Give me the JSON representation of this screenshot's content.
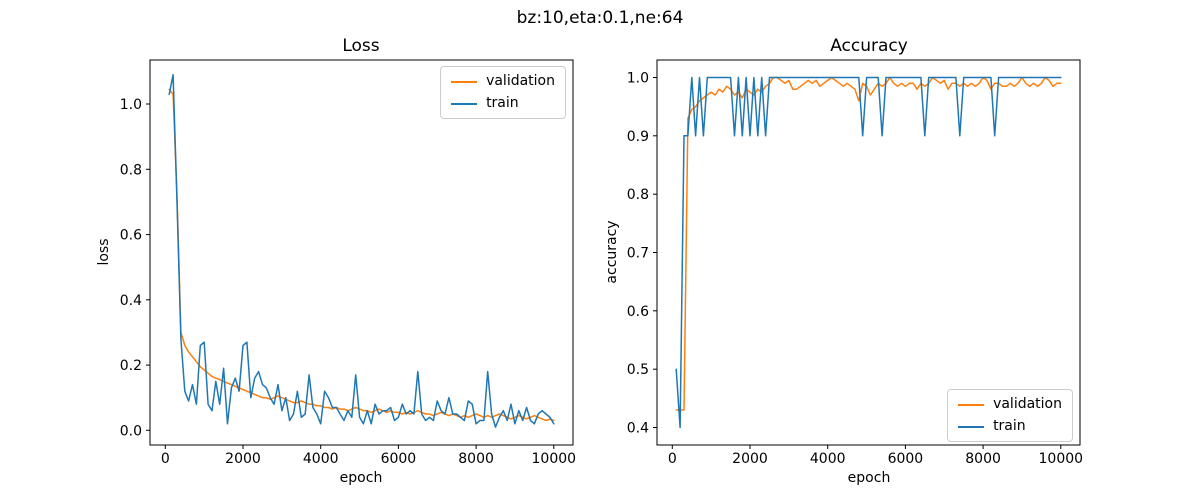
{
  "suptitle": "bz:10,eta:0.1,ne:64",
  "colors": {
    "validation": "#ff7f0e",
    "train": "#1f77b4",
    "text": "#000000",
    "spine": "#000000",
    "legend_border": "#cccccc",
    "background": "#ffffff"
  },
  "chart_data": [
    {
      "type": "line",
      "title": "Loss",
      "xlabel": "epoch",
      "ylabel": "loss",
      "xlim": [
        -395,
        10495
      ],
      "ylim": [
        -0.045,
        1.135
      ],
      "xticks": [
        0,
        2000,
        4000,
        6000,
        8000,
        10000
      ],
      "xtick_labels": [
        "0",
        "2000",
        "4000",
        "6000",
        "8000",
        "10000"
      ],
      "yticks": [
        0.0,
        0.2,
        0.4,
        0.6,
        0.8,
        1.0
      ],
      "ytick_labels": [
        "0.0",
        "0.2",
        "0.4",
        "0.6",
        "0.8",
        "1.0"
      ],
      "grid": false,
      "legend_position": "upper right",
      "x": [
        100,
        200,
        300,
        400,
        500,
        600,
        700,
        800,
        900,
        1000,
        1100,
        1200,
        1300,
        1400,
        1500,
        1600,
        1700,
        1800,
        1900,
        2000,
        2100,
        2200,
        2300,
        2400,
        2500,
        2600,
        2700,
        2800,
        2900,
        3000,
        3100,
        3200,
        3300,
        3400,
        3500,
        3600,
        3700,
        3800,
        3900,
        4000,
        4100,
        4200,
        4300,
        4400,
        4500,
        4600,
        4700,
        4800,
        4900,
        5000,
        5100,
        5200,
        5300,
        5400,
        5500,
        5600,
        5700,
        5800,
        5900,
        6000,
        6100,
        6200,
        6300,
        6400,
        6500,
        6600,
        6700,
        6800,
        6900,
        7000,
        7100,
        7200,
        7300,
        7400,
        7500,
        7600,
        7700,
        7800,
        7900,
        8000,
        8100,
        8200,
        8300,
        8400,
        8500,
        8600,
        8700,
        8800,
        8900,
        9000,
        9100,
        9200,
        9300,
        9400,
        9500,
        9600,
        9700,
        9800,
        9900,
        10000
      ],
      "series": [
        {
          "name": "validation",
          "color": "#ff7f0e",
          "values": [
            1.045,
            1.03,
            0.72,
            0.3,
            0.26,
            0.24,
            0.225,
            0.21,
            0.195,
            0.185,
            0.175,
            0.165,
            0.16,
            0.155,
            0.15,
            0.145,
            0.14,
            0.135,
            0.13,
            0.125,
            0.12,
            0.115,
            0.11,
            0.105,
            0.1,
            0.1,
            0.095,
            0.1,
            0.105,
            0.1,
            0.095,
            0.09,
            0.085,
            0.085,
            0.09,
            0.085,
            0.08,
            0.08,
            0.075,
            0.075,
            0.07,
            0.07,
            0.065,
            0.07,
            0.065,
            0.065,
            0.06,
            0.065,
            0.07,
            0.065,
            0.06,
            0.06,
            0.055,
            0.06,
            0.065,
            0.06,
            0.055,
            0.06,
            0.055,
            0.055,
            0.05,
            0.055,
            0.05,
            0.055,
            0.06,
            0.055,
            0.05,
            0.05,
            0.045,
            0.05,
            0.055,
            0.05,
            0.045,
            0.05,
            0.045,
            0.04,
            0.045,
            0.04,
            0.045,
            0.05,
            0.045,
            0.04,
            0.045,
            0.04,
            0.045,
            0.05,
            0.045,
            0.04,
            0.035,
            0.04,
            0.045,
            0.04,
            0.035,
            0.04,
            0.045,
            0.04,
            0.035,
            0.03,
            0.035,
            0.03
          ]
        },
        {
          "name": "train",
          "color": "#1f77b4",
          "values": [
            1.03,
            1.09,
            0.7,
            0.28,
            0.12,
            0.09,
            0.14,
            0.08,
            0.26,
            0.27,
            0.08,
            0.06,
            0.15,
            0.08,
            0.19,
            0.02,
            0.13,
            0.16,
            0.12,
            0.26,
            0.27,
            0.1,
            0.16,
            0.18,
            0.14,
            0.13,
            0.1,
            0.08,
            0.14,
            0.06,
            0.1,
            0.03,
            0.05,
            0.12,
            0.04,
            0.05,
            0.17,
            0.07,
            0.05,
            0.02,
            0.12,
            0.1,
            0.07,
            0.07,
            0.05,
            0.03,
            0.06,
            0.04,
            0.17,
            0.04,
            0.02,
            0.06,
            0.02,
            0.08,
            0.05,
            0.06,
            0.06,
            0.07,
            0.03,
            0.04,
            0.08,
            0.05,
            0.06,
            0.05,
            0.18,
            0.05,
            0.03,
            0.04,
            0.03,
            0.09,
            0.06,
            0.05,
            0.1,
            0.05,
            0.05,
            0.04,
            0.03,
            0.09,
            0.08,
            0.02,
            0.03,
            0.03,
            0.18,
            0.05,
            0.01,
            0.04,
            0.06,
            0.03,
            0.08,
            0.02,
            0.06,
            0.03,
            0.07,
            0.03,
            0.02,
            0.05,
            0.06,
            0.05,
            0.04,
            0.02
          ]
        }
      ]
    },
    {
      "type": "line",
      "title": "Accuracy",
      "xlabel": "epoch",
      "ylabel": "accuracy",
      "xlim": [
        -395,
        10495
      ],
      "ylim": [
        0.37,
        1.03
      ],
      "xticks": [
        0,
        2000,
        4000,
        6000,
        8000,
        10000
      ],
      "xtick_labels": [
        "0",
        "2000",
        "4000",
        "6000",
        "8000",
        "10000"
      ],
      "yticks": [
        0.4,
        0.5,
        0.6,
        0.7,
        0.8,
        0.9,
        1.0
      ],
      "ytick_labels": [
        "0.4",
        "0.5",
        "0.6",
        "0.7",
        "0.8",
        "0.9",
        "1.0"
      ],
      "grid": false,
      "legend_position": "lower right",
      "x": [
        100,
        200,
        300,
        400,
        500,
        600,
        700,
        800,
        900,
        1000,
        1100,
        1200,
        1300,
        1400,
        1500,
        1600,
        1700,
        1800,
        1900,
        2000,
        2100,
        2200,
        2300,
        2400,
        2500,
        2600,
        2700,
        2800,
        2900,
        3000,
        3100,
        3200,
        3300,
        3400,
        3500,
        3600,
        3700,
        3800,
        3900,
        4000,
        4100,
        4200,
        4300,
        4400,
        4500,
        4600,
        4700,
        4800,
        4900,
        5000,
        5100,
        5200,
        5300,
        5400,
        5500,
        5600,
        5700,
        5800,
        5900,
        6000,
        6100,
        6200,
        6300,
        6400,
        6500,
        6600,
        6700,
        6800,
        6900,
        7000,
        7100,
        7200,
        7300,
        7400,
        7500,
        7600,
        7700,
        7800,
        7900,
        8000,
        8100,
        8200,
        8300,
        8400,
        8500,
        8600,
        8700,
        8800,
        8900,
        9000,
        9100,
        9200,
        9300,
        9400,
        9500,
        9600,
        9700,
        9800,
        9900,
        10000
      ],
      "series": [
        {
          "name": "validation",
          "color": "#ff7f0e",
          "values": [
            0.43,
            0.43,
            0.43,
            0.93,
            0.945,
            0.95,
            0.96,
            0.965,
            0.97,
            0.975,
            0.97,
            0.98,
            0.975,
            0.985,
            0.98,
            0.97,
            0.975,
            0.965,
            0.98,
            0.975,
            0.97,
            0.98,
            0.975,
            0.985,
            0.99,
            1.0,
            1.0,
            0.995,
            0.99,
            0.995,
            0.98,
            0.98,
            0.985,
            0.99,
            0.995,
            0.99,
            0.995,
            0.985,
            0.99,
            0.995,
            1.0,
            0.995,
            0.99,
            0.985,
            0.99,
            0.985,
            0.98,
            0.96,
            0.99,
            0.985,
            0.97,
            0.98,
            0.99,
            0.985,
            0.99,
            1.0,
            0.99,
            0.985,
            0.99,
            0.985,
            0.99,
            0.99,
            0.98,
            0.99,
            0.985,
            0.99,
            1.0,
            0.995,
            0.99,
            0.995,
            0.98,
            0.99,
            0.99,
            0.985,
            0.99,
            0.985,
            0.99,
            0.985,
            0.99,
            1.0,
            0.995,
            0.98,
            0.99,
            0.99,
            0.985,
            0.985,
            0.99,
            0.985,
            0.99,
            1.0,
            0.99,
            0.985,
            0.99,
            0.985,
            0.99,
            1.0,
            0.995,
            0.985,
            0.99,
            0.99
          ]
        },
        {
          "name": "train",
          "color": "#1f77b4",
          "values": [
            0.5,
            0.4,
            0.9,
            0.9,
            1.0,
            0.9,
            1.0,
            0.9,
            1.0,
            1.0,
            1.0,
            1.0,
            1.0,
            1.0,
            1.0,
            0.9,
            1.0,
            0.9,
            1.0,
            0.9,
            1.0,
            0.9,
            1.0,
            0.9,
            1.0,
            1.0,
            1.0,
            1.0,
            1.0,
            1.0,
            1.0,
            1.0,
            1.0,
            1.0,
            1.0,
            1.0,
            1.0,
            1.0,
            1.0,
            1.0,
            1.0,
            1.0,
            1.0,
            1.0,
            1.0,
            1.0,
            1.0,
            1.0,
            0.9,
            1.0,
            1.0,
            1.0,
            1.0,
            0.9,
            1.0,
            1.0,
            1.0,
            1.0,
            1.0,
            1.0,
            1.0,
            1.0,
            1.0,
            1.0,
            0.9,
            1.0,
            1.0,
            1.0,
            1.0,
            1.0,
            1.0,
            1.0,
            1.0,
            0.9,
            1.0,
            1.0,
            1.0,
            1.0,
            1.0,
            1.0,
            1.0,
            1.0,
            0.9,
            1.0,
            1.0,
            1.0,
            1.0,
            1.0,
            1.0,
            1.0,
            1.0,
            1.0,
            1.0,
            1.0,
            1.0,
            1.0,
            1.0,
            1.0,
            1.0,
            1.0
          ]
        }
      ]
    }
  ]
}
